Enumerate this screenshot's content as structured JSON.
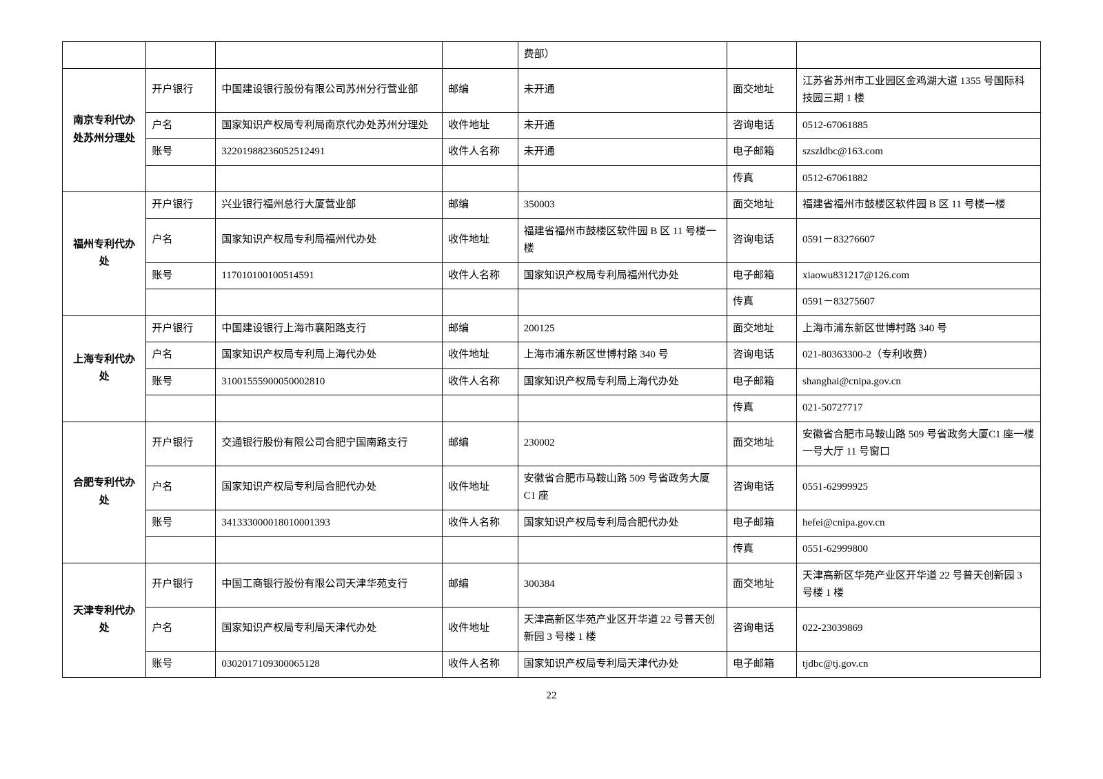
{
  "pageNumber": "22",
  "labels": {
    "bank": "开户银行",
    "acctName": "户名",
    "acctNo": "账号",
    "zip": "邮编",
    "recvAddr": "收件地址",
    "recvName": "收件人名称",
    "meetAddr": "面交地址",
    "phone": "咨询电话",
    "email": "电子邮箱",
    "fax": "传真"
  },
  "row0": {
    "v2": "费部）"
  },
  "offices": [
    {
      "name": "南京专利代办处苏州分理处",
      "bank": "中国建设银行股份有限公司苏州分行营业部",
      "acctName": "国家知识产权局专利局南京代办处苏州分理处",
      "acctNo": "32201988236052512491",
      "zip": "未开通",
      "recvAddr": "未开通",
      "recvName": "未开通",
      "meetAddr": "江苏省苏州市工业园区金鸡湖大道 1355 号国际科技园三期 1 楼",
      "phone": "0512-67061885",
      "email": "szszldbc@163.com",
      "fax": "0512-67061882"
    },
    {
      "name": "福州专利代办处",
      "bank": "兴业银行福州总行大厦营业部",
      "acctName": "国家知识产权局专利局福州代办处",
      "acctNo": "117010100100514591",
      "zip": "350003",
      "recvAddr": "福建省福州市鼓楼区软件园 B 区 11 号楼一楼",
      "recvName": "国家知识产权局专利局福州代办处",
      "meetAddr": "福建省福州市鼓楼区软件园 B 区 11 号楼一楼",
      "phone": "0591－83276607",
      "email": "xiaowu831217@126.com",
      "fax": "0591－83275607"
    },
    {
      "name": "上海专利代办处",
      "bank": "中国建设银行上海市襄阳路支行",
      "acctName": "国家知识产权局专利局上海代办处",
      "acctNo": "31001555900050002810",
      "zip": "200125",
      "recvAddr": "上海市浦东新区世博村路 340 号",
      "recvName": "国家知识产权局专利局上海代办处",
      "meetAddr": "上海市浦东新区世博村路 340 号",
      "phone": "021-80363300-2（专利收费）",
      "email": "shanghai@cnipa.gov.cn",
      "fax": "021-50727717"
    },
    {
      "name": "合肥专利代办处",
      "bank": "交通银行股份有限公司合肥宁国南路支行",
      "acctName": "国家知识产权局专利局合肥代办处",
      "acctNo": "341333000018010001393",
      "zip": "230002",
      "recvAddr": "安徽省合肥市马鞍山路 509 号省政务大厦 C1 座",
      "recvName": "国家知识产权局专利局合肥代办处",
      "meetAddr": "安徽省合肥市马鞍山路 509 号省政务大厦C1 座一楼一号大厅 11 号窗口",
      "phone": "0551-62999925",
      "email": "hefei@cnipa.gov.cn",
      "fax": "0551-62999800"
    },
    {
      "name": "天津专利代办处",
      "bank": "中国工商银行股份有限公司天津华苑支行",
      "acctName": "国家知识产权局专利局天津代办处",
      "acctNo": "0302017109300065128",
      "zip": "300384",
      "recvAddr": "天津高新区华苑产业区开华道 22 号普天创新园 3 号楼 1 楼",
      "recvName": "国家知识产权局专利局天津代办处",
      "meetAddr": "天津高新区华苑产业区开华道 22 号普天创新园 3 号楼 1 楼",
      "phone": "022-23039869",
      "email": "tjdbc@tj.gov.cn"
    }
  ]
}
